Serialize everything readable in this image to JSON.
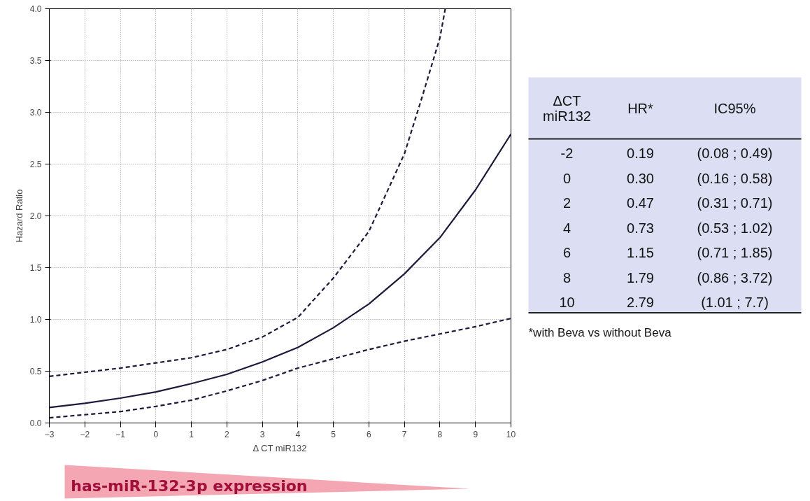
{
  "chart_data": {
    "type": "line",
    "xlabel": "Δ CT miR132",
    "ylabel": "Hazard Ratio",
    "xlim": [
      -3,
      10
    ],
    "ylim": [
      0,
      4
    ],
    "xticks": [
      -3,
      -2,
      -1,
      0,
      1,
      2,
      3,
      4,
      5,
      6,
      7,
      8,
      9,
      10
    ],
    "yticks": [
      {
        "value": 0,
        "label": "0.0"
      },
      0.5,
      {
        "value": 1,
        "label": "1.0"
      },
      1.5,
      {
        "value": 2,
        "label": "2.0"
      },
      2.5,
      {
        "value": 3,
        "label": "3.0"
      },
      3.5,
      {
        "value": 4,
        "label": "4.0"
      }
    ],
    "grid": true,
    "marker": "none",
    "x": [
      -3,
      -2,
      -1,
      0,
      1,
      2,
      3,
      4,
      5,
      6,
      7,
      8,
      9,
      10
    ],
    "series": [
      {
        "color": "#1a1a3a",
        "line_style": "solid",
        "values": [
          0.15,
          0.19,
          0.24,
          0.3,
          0.38,
          0.47,
          0.59,
          0.73,
          0.92,
          1.15,
          1.44,
          1.79,
          2.25,
          2.79
        ]
      },
      {
        "color": "#1a1a3a",
        "line_style": "dashed",
        "values": [
          0.05,
          0.08,
          0.11,
          0.16,
          0.22,
          0.31,
          0.41,
          0.53,
          0.62,
          0.71,
          0.79,
          0.86,
          0.93,
          1.01
        ]
      },
      {
        "color": "#1a1a3a",
        "line_style": "dashed",
        "x": [
          -3,
          -2,
          -1,
          0,
          1,
          2,
          3,
          4,
          5,
          6,
          7,
          7.5,
          8,
          8.15
        ],
        "values": [
          0.45,
          0.49,
          0.53,
          0.58,
          0.63,
          0.71,
          0.83,
          1.02,
          1.4,
          1.85,
          2.6,
          3.15,
          3.72,
          4.0
        ]
      }
    ],
    "annotations": [
      "has-miR-132-3p expression",
      "ΔCT\nmiR132",
      "HR*",
      "IC95%",
      "-2",
      "0.19",
      "(0.08 ; 0.49)",
      "0",
      "0.30",
      "(0.16 ; 0.58)",
      "2",
      "0.47",
      "(0.31 ; 0.71)",
      "4",
      "0.73",
      "(0.53 ; 1.02)",
      "6",
      "1.15",
      "(0.71 ; 1.85)",
      "8",
      "1.79",
      "(0.86 ; 3.72)",
      "10",
      "2.79",
      "(1.01 ; 7.7)",
      "*with Beva vs without Beva"
    ]
  }
}
